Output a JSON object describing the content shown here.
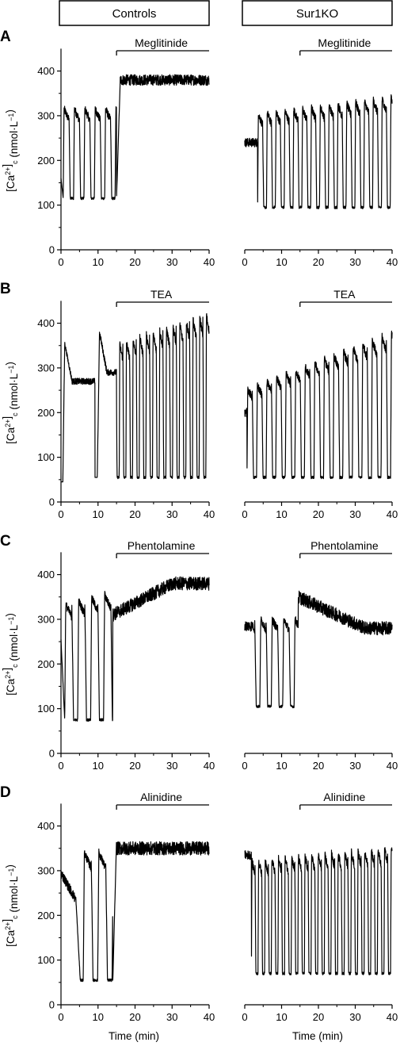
{
  "figure": {
    "column_headers": [
      "Controls",
      "Sur1KO"
    ],
    "xlabel": "Time (min)",
    "ylabel_main": "[Ca",
    "ylabel_sup": "2+",
    "ylabel_close": "]",
    "ylabel_sub": "c",
    "ylabel_unit": "(nmol·L",
    "ylabel_unit_sup": "−1",
    "ylabel_unit_close": ")"
  },
  "chart_data": [
    {
      "type": "line",
      "panel": "A",
      "group": "Controls",
      "drug": "Meglitinide",
      "drug_start": 15,
      "drug_end": 40,
      "xlim": [
        0,
        40
      ],
      "ylim": [
        0,
        450
      ],
      "x_ticks": [
        "0",
        "10",
        "20",
        "30",
        "40"
      ],
      "y_ticks": [
        "0",
        "100",
        "200",
        "300",
        "400"
      ],
      "y_ticks_values": [
        0,
        100,
        200,
        300,
        400
      ],
      "pattern": {
        "kind": "osc_then_plateau",
        "pre_period": 2.8,
        "pre_peak": 315,
        "pre_trough": 115,
        "start_value": 160,
        "switch_time": 15,
        "post_level": 380,
        "post_noise": 12
      },
      "x": [
        0,
        1,
        2,
        3,
        4,
        5,
        6,
        7,
        8,
        9,
        10,
        11,
        12,
        13,
        14,
        15,
        16,
        18,
        20,
        25,
        30,
        35,
        40
      ],
      "values": [
        160,
        300,
        280,
        110,
        330,
        290,
        115,
        320,
        280,
        118,
        325,
        290,
        120,
        330,
        300,
        130,
        385,
        370,
        378,
        380,
        382,
        395,
        375
      ]
    },
    {
      "type": "line",
      "panel": "A",
      "group": "Sur1KO",
      "drug": "Meglitinide",
      "drug_start": 15,
      "drug_end": 40,
      "xlim": [
        0,
        40
      ],
      "ylim": [
        0,
        450
      ],
      "x_ticks": [
        "0",
        "10",
        "20",
        "30",
        "40"
      ],
      "y_ticks": [],
      "pattern": {
        "kind": "osc",
        "period": 2.4,
        "peak_start": 300,
        "peak_end": 340,
        "trough": 95,
        "start_value": 240,
        "start_plateau": 3.5
      },
      "x": [
        0,
        2,
        3,
        4,
        5,
        6,
        8,
        10,
        12,
        15,
        20,
        25,
        30,
        35,
        40
      ],
      "values": [
        240,
        230,
        250,
        100,
        300,
        95,
        310,
        95,
        320,
        95,
        330,
        95,
        340,
        95,
        330
      ]
    },
    {
      "type": "line",
      "panel": "B",
      "group": "Controls",
      "drug": "TEA",
      "drug_start": 15,
      "drug_end": 40,
      "xlim": [
        0,
        40
      ],
      "ylim": [
        0,
        450
      ],
      "x_ticks": [
        "0",
        "10",
        "20",
        "30",
        "40"
      ],
      "y_ticks": [
        "0",
        "100",
        "200",
        "300",
        "400"
      ],
      "y_ticks_values": [
        0,
        100,
        200,
        300,
        400
      ],
      "pattern": {
        "kind": "plateau_then_osc",
        "first_peak": 355,
        "plateau": 270,
        "dip_time": 9.5,
        "dip_value": 55,
        "second_peak": 380,
        "post_period": 1.8,
        "post_peak_start": 350,
        "post_peak_end": 420,
        "post_trough": 55,
        "start_value": 45,
        "switch_time": 15
      },
      "x": [
        0,
        1,
        3,
        5,
        8,
        9.5,
        10.3,
        12,
        15,
        16,
        20,
        25,
        30,
        35,
        40
      ],
      "values": [
        45,
        355,
        290,
        270,
        270,
        55,
        380,
        300,
        290,
        55,
        390,
        55,
        410,
        55,
        60
      ]
    },
    {
      "type": "line",
      "panel": "B",
      "group": "Sur1KO",
      "drug": "TEA",
      "drug_start": 15,
      "drug_end": 40,
      "xlim": [
        0,
        40
      ],
      "ylim": [
        0,
        450
      ],
      "x_ticks": [
        "0",
        "10",
        "20",
        "30",
        "40"
      ],
      "y_ticks": [],
      "pattern": {
        "kind": "osc",
        "period": 2.6,
        "peak_start": 250,
        "peak_end": 380,
        "trough": 55,
        "start_value": 200,
        "start_plateau": 0.6
      },
      "x": [
        0,
        2,
        5,
        10,
        15,
        20,
        25,
        30,
        35,
        40
      ],
      "values": [
        200,
        260,
        55,
        280,
        55,
        310,
        55,
        340,
        55,
        385
      ]
    },
    {
      "type": "line",
      "panel": "C",
      "group": "Controls",
      "drug": "Phentolamine",
      "drug_start": 15,
      "drug_end": 40,
      "xlim": [
        0,
        40
      ],
      "ylim": [
        0,
        450
      ],
      "x_ticks": [
        "0",
        "10",
        "20",
        "30",
        "40"
      ],
      "y_ticks": [
        "0",
        "100",
        "200",
        "300",
        "400"
      ],
      "y_ticks_values": [
        0,
        100,
        200,
        300,
        400
      ],
      "pattern": {
        "kind": "osc_then_rise",
        "pre_period": 3.5,
        "pre_peak": 330,
        "pre_trough": 75,
        "start_value": 255,
        "switch_time": 14,
        "post_start": 310,
        "post_end": 380,
        "post_noise": 15
      },
      "x": [
        0,
        2,
        4,
        6,
        8,
        10,
        12,
        14,
        16,
        20,
        25,
        30,
        35,
        40
      ],
      "values": [
        255,
        80,
        325,
        75,
        345,
        78,
        355,
        80,
        310,
        340,
        370,
        385,
        390,
        370
      ]
    },
    {
      "type": "line",
      "panel": "C",
      "group": "Sur1KO",
      "drug": "Phentolamine",
      "drug_start": 15,
      "drug_end": 40,
      "xlim": [
        0,
        40
      ],
      "ylim": [
        0,
        450
      ],
      "x_ticks": [
        "0",
        "10",
        "20",
        "30",
        "40"
      ],
      "y_ticks": [],
      "pattern": {
        "kind": "irregular_then_decline",
        "start_value": 285,
        "switch_time": 14.5,
        "post_start": 350,
        "post_end": 280,
        "post_noise": 15
      },
      "x": [
        0,
        2,
        3,
        5,
        7,
        9,
        11,
        13,
        14.5,
        18,
        25,
        30,
        35,
        40
      ],
      "values": [
        285,
        270,
        110,
        290,
        110,
        315,
        105,
        290,
        100,
        360,
        320,
        295,
        285,
        280
      ]
    },
    {
      "type": "line",
      "panel": "D",
      "group": "Controls",
      "drug": "Alinidine",
      "drug_start": 15,
      "drug_end": 40,
      "xlim": [
        0,
        40
      ],
      "ylim": [
        0,
        450
      ],
      "x_ticks": [
        "0",
        "10",
        "20",
        "30",
        "40"
      ],
      "y_ticks": [
        "0",
        "100",
        "200",
        "300",
        "400"
      ],
      "y_ticks_values": [
        0,
        100,
        200,
        300,
        400
      ],
      "pattern": {
        "kind": "decline_osc_then_plateau",
        "start_value": 295,
        "pre_peak": 340,
        "pre_trough": 55,
        "switch_time": 14,
        "post_level": 350,
        "post_noise": 15
      },
      "x": [
        0,
        3,
        5,
        6,
        7,
        9,
        11,
        12,
        14,
        15,
        20,
        25,
        30,
        35,
        40
      ],
      "values": [
        295,
        240,
        55,
        50,
        355,
        60,
        340,
        70,
        65,
        380,
        340,
        350,
        360,
        355,
        330
      ]
    },
    {
      "type": "line",
      "panel": "D",
      "group": "Sur1KO",
      "drug": "Alinidine",
      "drug_start": 15,
      "drug_end": 40,
      "xlim": [
        0,
        40
      ],
      "ylim": [
        0,
        450
      ],
      "x_ticks": [
        "0",
        "10",
        "20",
        "30",
        "40"
      ],
      "y_ticks": [],
      "pattern": {
        "kind": "osc",
        "period": 1.8,
        "peak_start": 320,
        "peak_end": 350,
        "trough": 70,
        "start_value": 335,
        "start_plateau": 1.8
      },
      "x": [
        0,
        2,
        5,
        10,
        15,
        20,
        25,
        30,
        35,
        40
      ],
      "values": [
        335,
        290,
        70,
        340,
        70,
        345,
        70,
        350,
        70,
        310
      ]
    }
  ]
}
